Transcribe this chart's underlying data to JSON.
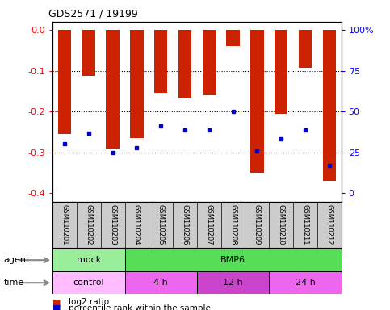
{
  "title": "GDS2571 / 19199",
  "samples": [
    "GSM110201",
    "GSM110202",
    "GSM110203",
    "GSM110204",
    "GSM110205",
    "GSM110206",
    "GSM110207",
    "GSM110208",
    "GSM110209",
    "GSM110210",
    "GSM110211",
    "GSM110212"
  ],
  "log2_ratio": [
    -0.255,
    -0.113,
    -0.29,
    -0.265,
    -0.155,
    -0.168,
    -0.16,
    -0.04,
    -0.35,
    -0.205,
    -0.093,
    -0.37
  ],
  "percentile": [
    32,
    38,
    27,
    30,
    42,
    40,
    40,
    50,
    28,
    35,
    40,
    20
  ],
  "ylim_left": [
    -0.42,
    0.02
  ],
  "ylim_right": [
    -5,
    105
  ],
  "yticks_left": [
    0.0,
    -0.1,
    -0.2,
    -0.3,
    -0.4
  ],
  "yticks_right": [
    0,
    25,
    50,
    75,
    100
  ],
  "bar_color": "#cc2200",
  "dot_color": "#0000cc",
  "background_color": "#ffffff",
  "label_bg_color": "#cccccc",
  "agent_groups": [
    {
      "label": "mock",
      "start": 0,
      "end": 3,
      "color": "#99ee99"
    },
    {
      "label": "BMP6",
      "start": 3,
      "end": 12,
      "color": "#55dd55"
    }
  ],
  "time_groups": [
    {
      "label": "control",
      "start": 0,
      "end": 3,
      "color": "#ffbbff"
    },
    {
      "label": "4 h",
      "start": 3,
      "end": 6,
      "color": "#ee66ee"
    },
    {
      "label": "12 h",
      "start": 6,
      "end": 9,
      "color": "#cc44cc"
    },
    {
      "label": "24 h",
      "start": 9,
      "end": 12,
      "color": "#ee66ee"
    }
  ],
  "legend_red": "log2 ratio",
  "legend_blue": "percentile rank within the sample",
  "agent_label": "agent",
  "time_label": "time"
}
